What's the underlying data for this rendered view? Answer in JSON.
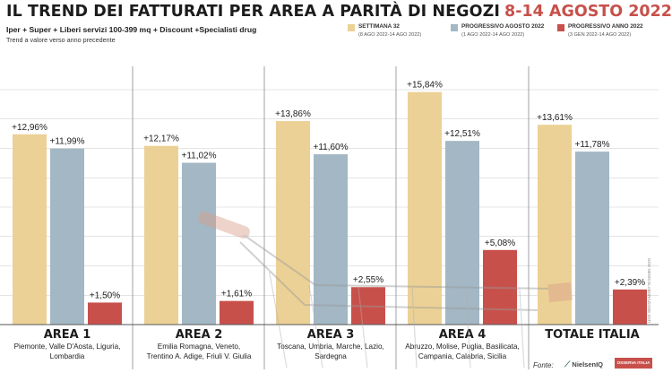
{
  "title": "IL TREND DEI FATTURATI PER AREA A PARITÀ DI NEGOZI",
  "title_date": "8-14 AGOSTO 2022",
  "subtitle": "Iper + Super + Liberi servizi 100-399 mq + Discount +Specialisti drug",
  "note": "Trend a valore verso anno precedente",
  "legend": [
    {
      "label": "SETTIMANA 32",
      "detail": "(8 AGO 2022-14 AGO 2022)",
      "color": "#ecd196"
    },
    {
      "label": "PROGRESSIVO AGOSTO 2022",
      "detail": "(1 AGO 2022-14 AGO 2022)",
      "color": "#a3b7c4"
    },
    {
      "label": "PROGRESSIVO ANNO 2022",
      "detail": "(3 GEN 2022-14 AGO 2022)",
      "color": "#c8504b"
    }
  ],
  "colors": {
    "series1": "#ecd196",
    "series2": "#a3b7c4",
    "series3": "#c8504b",
    "grid": "#c9c9c9",
    "separator": "#8a8a8a",
    "title_accent": "#c8504b"
  },
  "chart_data": {
    "type": "bar",
    "categories": [
      "AREA 1",
      "AREA 2",
      "AREA 3",
      "AREA 4",
      "TOTALE ITALIA"
    ],
    "category_details": [
      "Piemonte, Valle D'Aosta, Liguria,|Lombardia",
      "Emilia Romagna, Veneto,|Trentino A. Adige, Friuli V. Giulia",
      "Toscana, Umbria, Marche, Lazio,|Sardegna",
      "Abruzzo, Molise, Puglia, Basilicata,|Campania, Calabria, Sicilia",
      ""
    ],
    "series": [
      {
        "name": "SETTIMANA 32",
        "values": [
          12.96,
          12.17,
          13.86,
          15.84,
          13.61
        ],
        "labels": [
          "+12,96%",
          "+12,17%",
          "+13,86%",
          "+15,84%",
          "+13,61%"
        ]
      },
      {
        "name": "PROGRESSIVO AGOSTO 2022",
        "values": [
          11.99,
          11.02,
          11.6,
          12.51,
          11.78
        ],
        "labels": [
          "+11,99%",
          "+11,02%",
          "+11,60%",
          "+12,51%",
          "+11,78%"
        ]
      },
      {
        "name": "PROGRESSIVO ANNO 2022",
        "values": [
          1.5,
          1.61,
          2.55,
          5.08,
          2.39
        ],
        "labels": [
          "+1,50%",
          "+1,61%",
          "+2,55%",
          "+5,08%",
          "+2,39%"
        ]
      }
    ],
    "ylim": [
      0,
      16
    ],
    "grid": true,
    "legend_position": "top-right"
  },
  "credit": "GDO NEWS ELABORAZIONE DATI",
  "source_label": "Fonte:",
  "source_logo_1": "NielsenIQ",
  "source_logo_2": "OSSERVA ITALIA"
}
